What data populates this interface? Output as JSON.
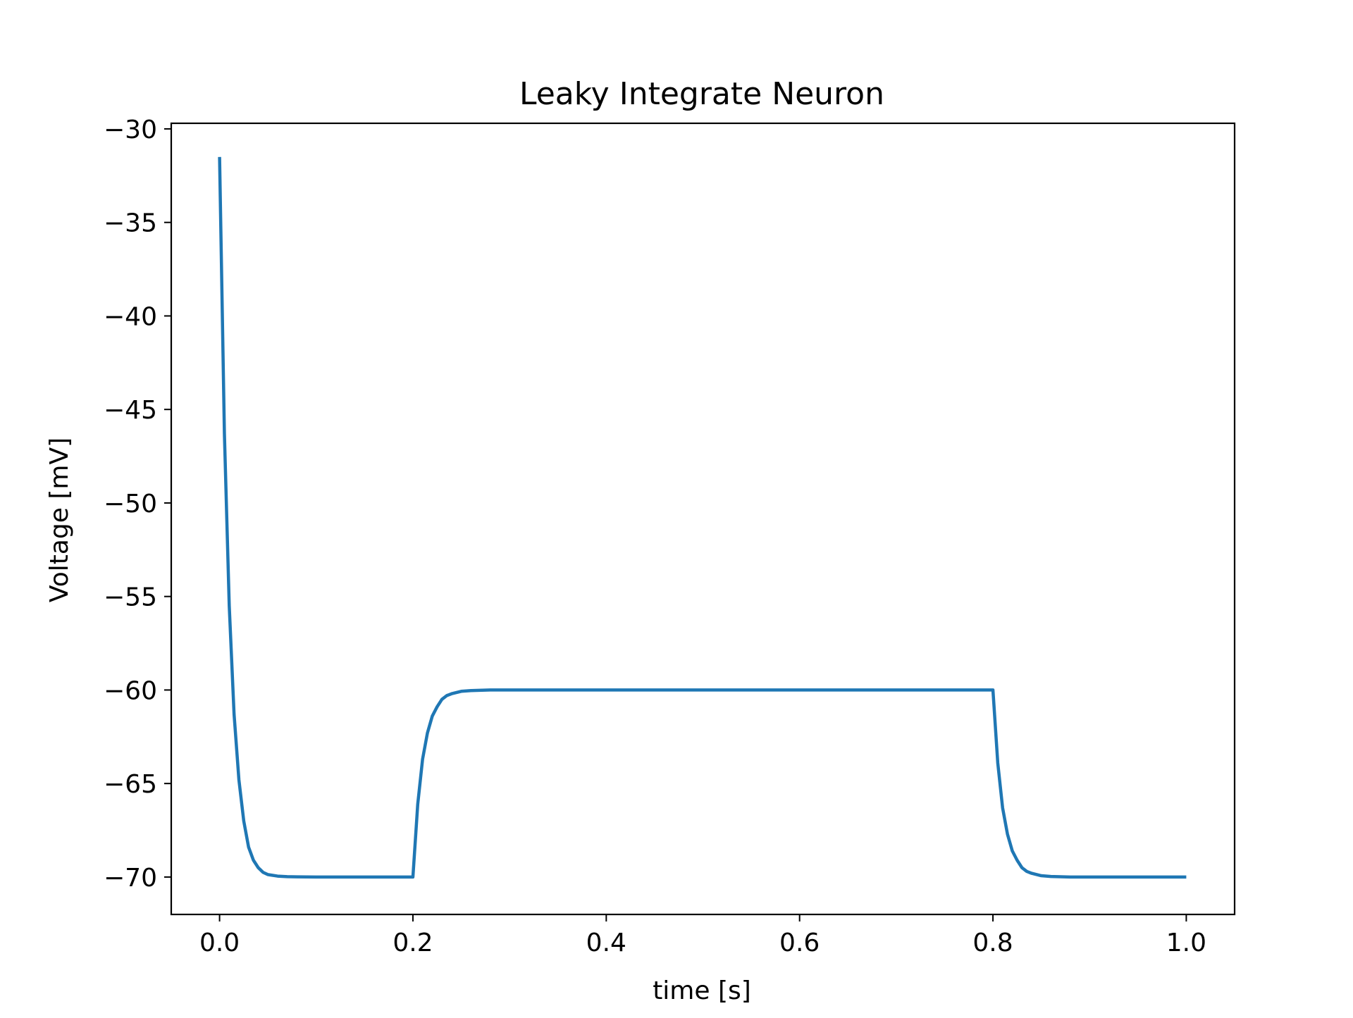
{
  "chart_data": {
    "type": "line",
    "title": "Leaky Integrate Neuron",
    "xlabel": "time [s]",
    "ylabel": "Voltage [mV]",
    "xlim": [
      -0.05,
      1.05
    ],
    "ylim": [
      -72,
      -29.7
    ],
    "xticks": [
      0.0,
      0.2,
      0.4,
      0.6,
      0.8,
      1.0
    ],
    "xtick_labels": [
      "0.0",
      "0.2",
      "0.4",
      "0.6",
      "0.8",
      "1.0"
    ],
    "yticks": [
      -70,
      -65,
      -60,
      -55,
      -50,
      -45,
      -40,
      -35,
      -30
    ],
    "ytick_labels": [
      "−70",
      "−65",
      "−60",
      "−55",
      "−50",
      "−45",
      "−40",
      "−35",
      "−30"
    ],
    "grid": false,
    "line_color": "#1f77b4",
    "series": [
      {
        "x": [
          0.0,
          0.005,
          0.01,
          0.015,
          0.02,
          0.025,
          0.03,
          0.035,
          0.04,
          0.045,
          0.05,
          0.06,
          0.07,
          0.08,
          0.1,
          0.15,
          0.2,
          0.2,
          0.205,
          0.21,
          0.215,
          0.22,
          0.225,
          0.23,
          0.235,
          0.24,
          0.25,
          0.26,
          0.28,
          0.3,
          0.5,
          0.7,
          0.8,
          0.8,
          0.805,
          0.81,
          0.815,
          0.82,
          0.825,
          0.83,
          0.835,
          0.84,
          0.85,
          0.86,
          0.88,
          0.9,
          1.0
        ],
        "y": [
          -31.5,
          -46.3,
          -55.5,
          -61.3,
          -64.8,
          -67.0,
          -68.4,
          -69.1,
          -69.5,
          -69.75,
          -69.87,
          -69.95,
          -69.98,
          -69.99,
          -70.0,
          -70.0,
          -70.0,
          -70.0,
          -66.1,
          -63.7,
          -62.3,
          -61.4,
          -60.9,
          -60.5,
          -60.3,
          -60.2,
          -60.07,
          -60.03,
          -60.0,
          -60.0,
          -60.0,
          -60.0,
          -60.0,
          -60.0,
          -63.9,
          -66.3,
          -67.7,
          -68.6,
          -69.1,
          -69.5,
          -69.7,
          -69.8,
          -69.93,
          -69.97,
          -70.0,
          -70.0,
          -70.0
        ]
      }
    ]
  }
}
